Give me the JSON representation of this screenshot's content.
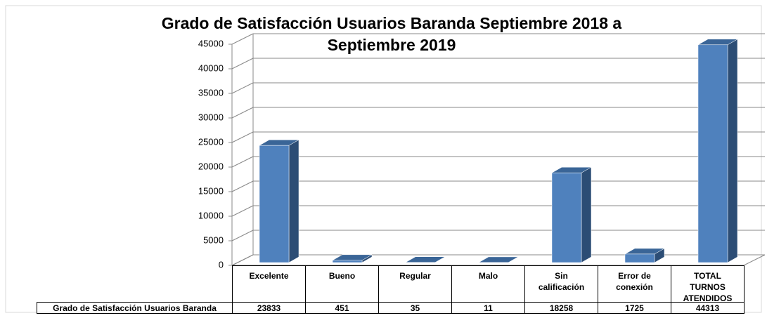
{
  "chart_data": {
    "type": "bar",
    "title": "Grado de Satisfacción Usuarios Baranda Septiembre 2018 a Septiembre 2019",
    "categories": [
      "Excelente",
      "Bueno",
      "Regular",
      "Malo",
      "Sin calificación",
      "Error de conexión",
      "TOTAL TURNOS ATENDIDOS"
    ],
    "series": [
      {
        "name": "Grado de Satisfacción Usuarios Baranda",
        "color": "#4f81bd",
        "values": [
          23833,
          451,
          35,
          11,
          18258,
          1725,
          44313
        ]
      }
    ],
    "ylim": [
      0,
      45000
    ],
    "yticks": [
      0,
      5000,
      10000,
      15000,
      20000,
      25000,
      30000,
      35000,
      40000,
      45000
    ],
    "grid": true
  }
}
